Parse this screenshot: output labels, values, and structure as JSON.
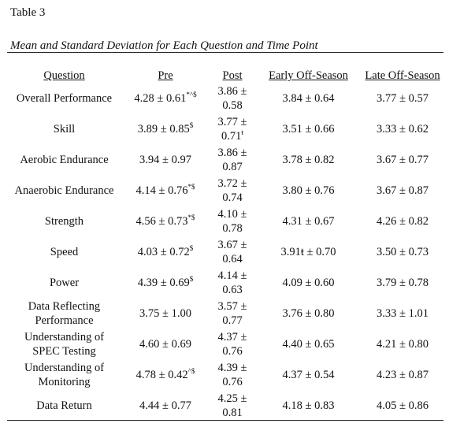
{
  "table_label": "Table 3",
  "table_title": "Mean and Standard Deviation for Each Question and Time Point",
  "columns": [
    "Question",
    "Pre",
    "Post",
    "Early Off-Season",
    "Late Off-Season"
  ],
  "rows": [
    {
      "question": "Overall Performance",
      "pre": "4.28 ± 0.61",
      "pre_sup": "*^$",
      "post": "3.86 ± 0.58",
      "post_sup": "",
      "early": "3.84 ± 0.64",
      "early_sup": "",
      "late": "3.77 ± 0.57"
    },
    {
      "question": "Skill",
      "pre": "3.89 ± 0.85",
      "pre_sup": "$",
      "post": "3.77 ± 0.71",
      "post_sup": "ŧ",
      "early": "3.51 ± 0.66",
      "early_sup": "",
      "late": "3.33 ± 0.62"
    },
    {
      "question": "Aerobic Endurance",
      "pre": "3.94 ± 0.97",
      "pre_sup": "",
      "post": "3.86 ± 0.87",
      "post_sup": "",
      "early": "3.78 ± 0.82",
      "early_sup": "",
      "late": "3.67 ± 0.77"
    },
    {
      "question": "Anaerobic Endurance",
      "pre": "4.14 ± 0.76",
      "pre_sup": "*$",
      "post": "3.72 ± 0.74",
      "post_sup": "",
      "early": "3.80 ± 0.76",
      "early_sup": "",
      "late": "3.67 ± 0.87"
    },
    {
      "question": "Strength",
      "pre": "4.56 ± 0.73",
      "pre_sup": "*$",
      "post": "4.10 ± 0.78",
      "post_sup": "",
      "early": "4.31 ± 0.67",
      "early_sup": "",
      "late": "4.26 ± 0.82"
    },
    {
      "question": "Speed",
      "pre": "4.03 ± 0.72",
      "pre_sup": "$",
      "post": "3.67 ± 0.64",
      "post_sup": "",
      "early": "3.91ŧ ± 0.70",
      "early_sup": "",
      "late": "3.50 ± 0.73"
    },
    {
      "question": "Power",
      "pre": "4.39 ± 0.69",
      "pre_sup": "$",
      "post": "4.14 ± 0.63",
      "post_sup": "",
      "early": "4.09 ± 0.60",
      "early_sup": "",
      "late": "3.79 ± 0.78"
    },
    {
      "question": "Data Reflecting Performance",
      "pre": "3.75 ± 1.00",
      "pre_sup": "",
      "post": "3.57 ± 0.77",
      "post_sup": "",
      "early": "3.76 ± 0.80",
      "early_sup": "",
      "late": "3.33 ± 1.01"
    },
    {
      "question": "Understanding of SPEC Testing",
      "pre": "4.60 ± 0.69",
      "pre_sup": "",
      "post": "4.37 ± 0.76",
      "post_sup": "",
      "early": "4.40 ± 0.65",
      "early_sup": "",
      "late": "4.21 ± 0.80"
    },
    {
      "question": "Understanding of Monitoring",
      "pre": "4.78 ± 0.42",
      "pre_sup": "^$",
      "post": "4.39 ± 0.76",
      "post_sup": "",
      "early": "4.37 ± 0.54",
      "early_sup": "",
      "late": "4.23 ± 0.87"
    },
    {
      "question": "Data Return",
      "pre": "4.44 ± 0.77",
      "pre_sup": "",
      "post": "4.25 ± 0.81",
      "post_sup": "",
      "early": "4.18 ± 0.83",
      "early_sup": "",
      "late": "4.05 ± 0.86"
    }
  ]
}
